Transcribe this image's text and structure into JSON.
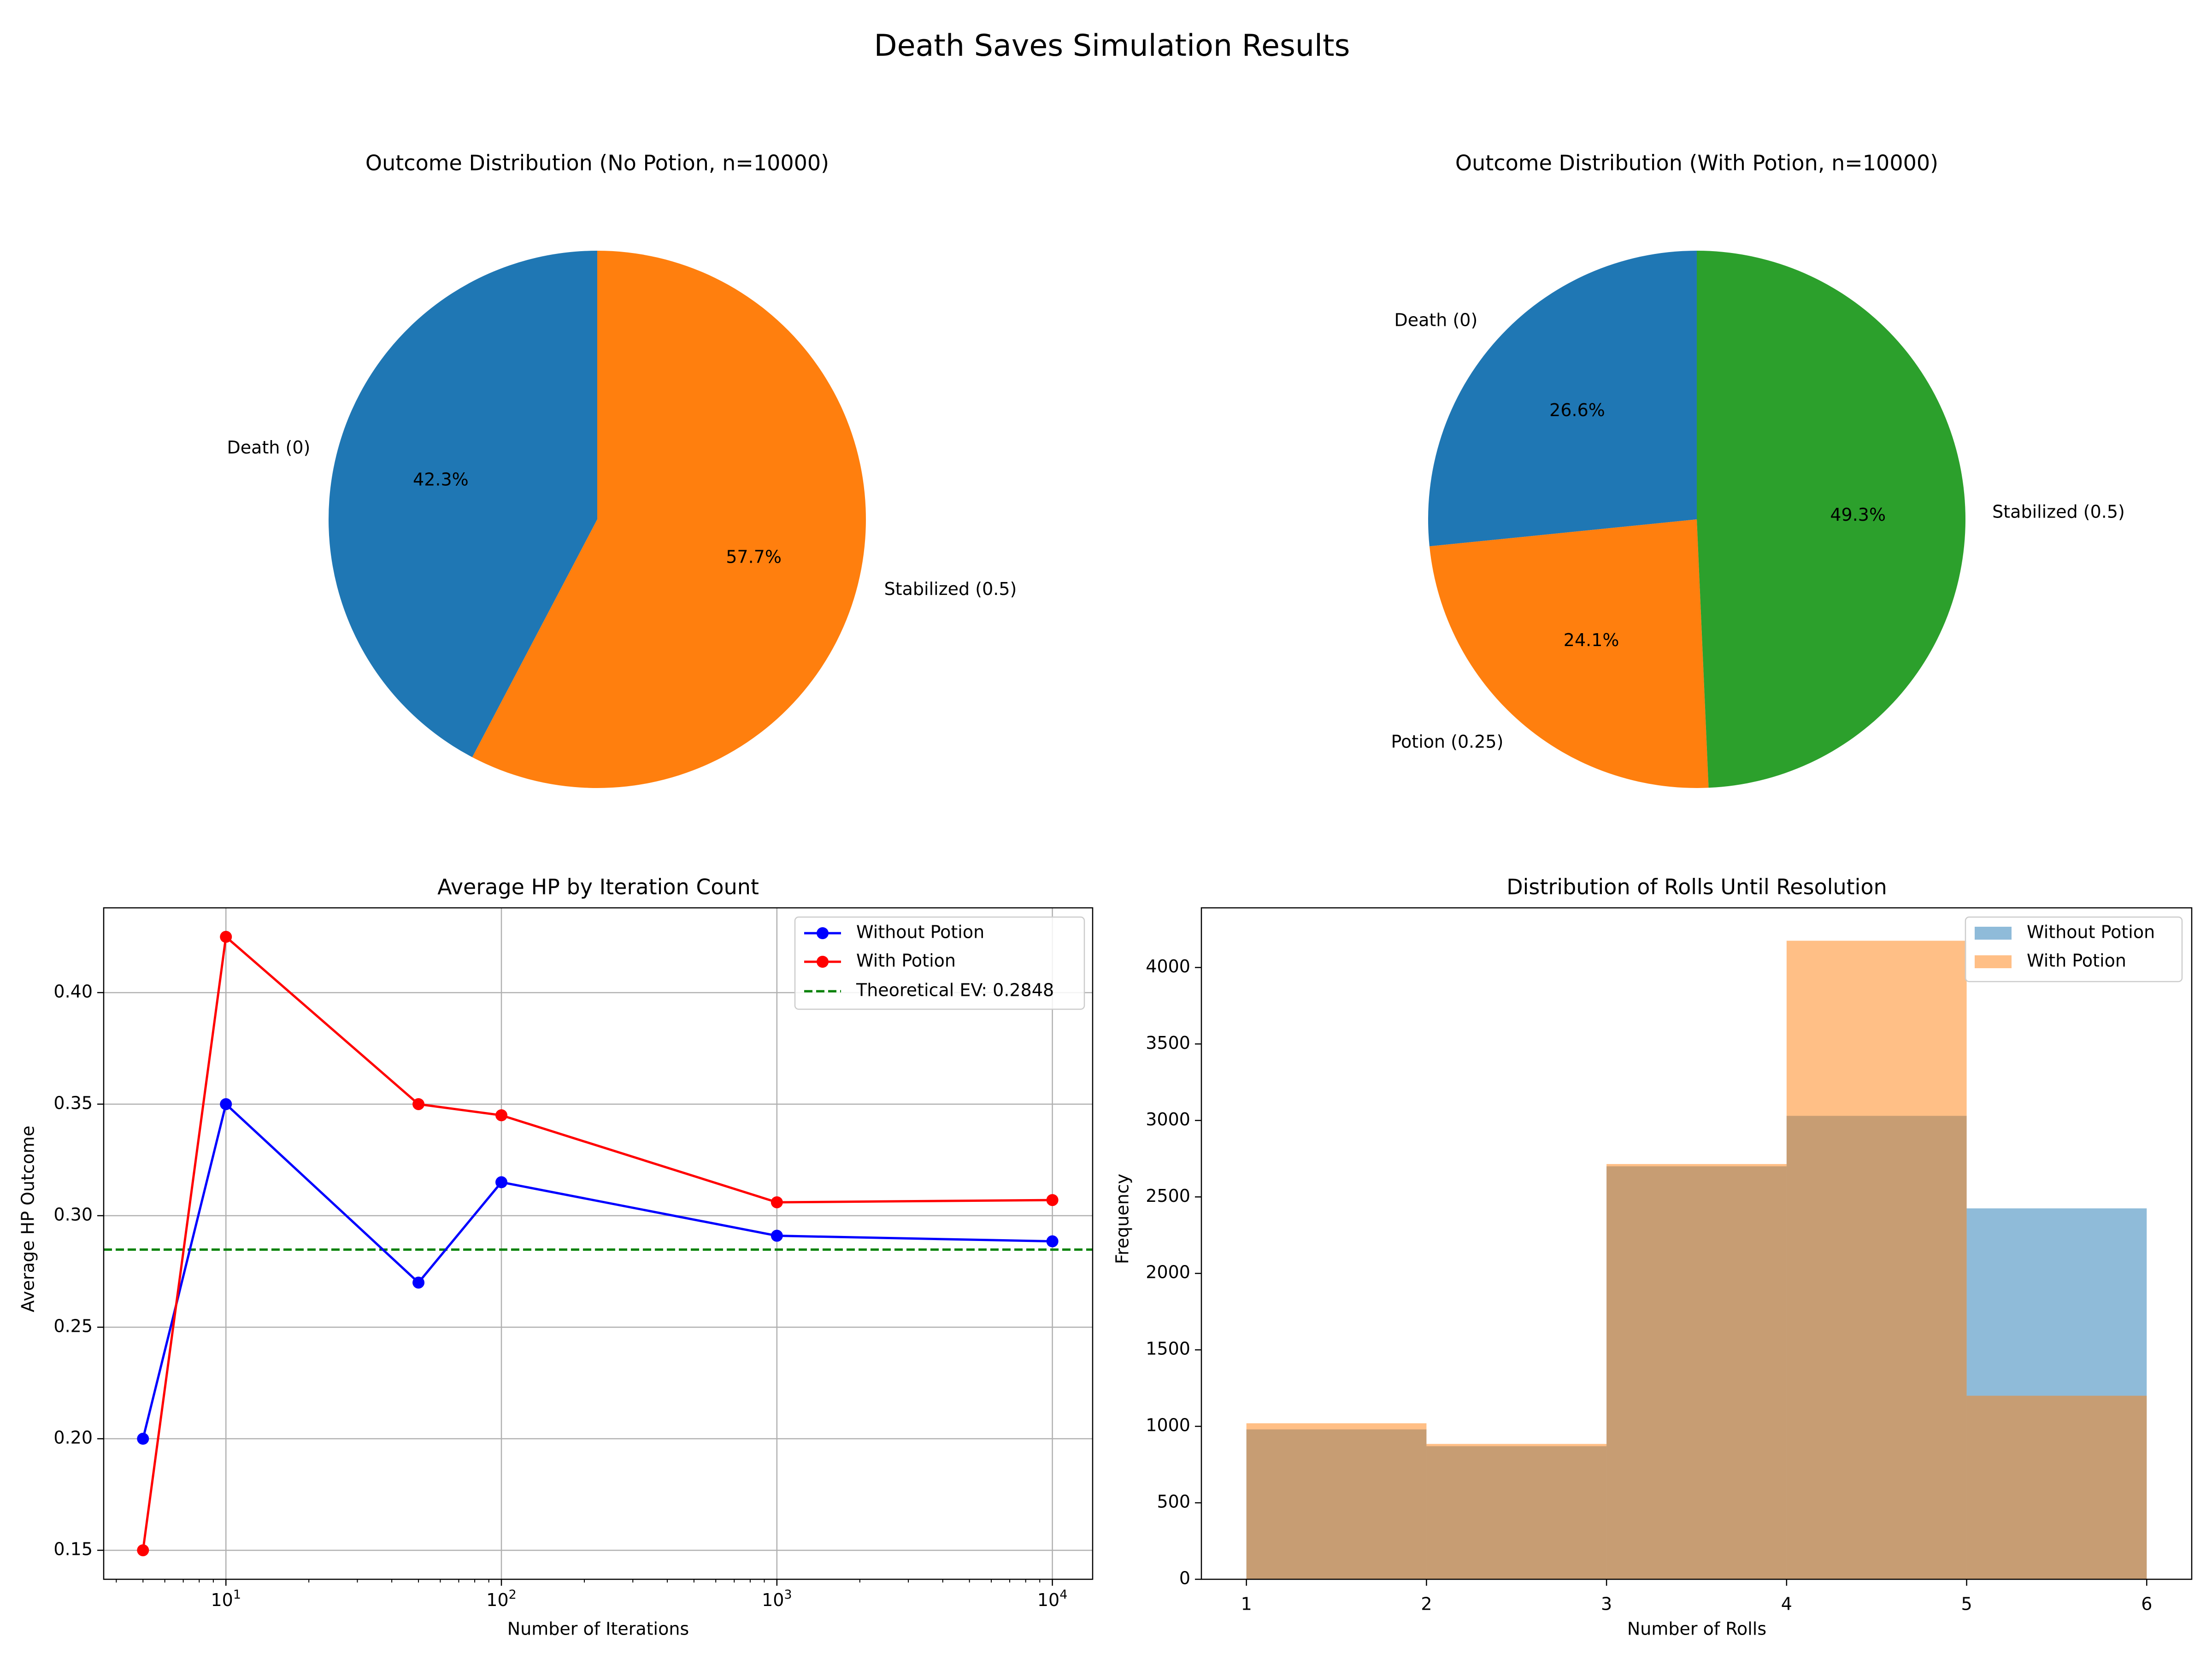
{
  "figure": {
    "title": "Death Saves Simulation Results"
  },
  "chart_data": [
    {
      "type": "pie",
      "title": "Outcome Distribution (No Potion, n=10000)",
      "labels": [
        "Death (0)",
        "Stabilized (0.5)"
      ],
      "values": [
        42.3,
        57.7
      ],
      "pct_labels": [
        "42.3%",
        "57.7%"
      ],
      "colors": [
        "#1f77b4",
        "#ff7f0e"
      ]
    },
    {
      "type": "pie",
      "title": "Outcome Distribution (With Potion, n=10000)",
      "labels": [
        "Death (0)",
        "Potion (0.25)",
        "Stabilized (0.5)"
      ],
      "values": [
        26.6,
        24.1,
        49.3
      ],
      "pct_labels": [
        "26.6%",
        "24.1%",
        "49.3%"
      ],
      "colors": [
        "#1f77b4",
        "#ff7f0e",
        "#2ca02c"
      ]
    },
    {
      "type": "line",
      "title": "Average HP by Iteration Count",
      "xlabel": "Number of Iterations",
      "ylabel": "Average HP Outcome",
      "x_scale": "log",
      "x": [
        5,
        10,
        50,
        100,
        1000,
        10000
      ],
      "xlim": [
        3.6,
        14000
      ],
      "ylim": [
        0.137,
        0.438
      ],
      "x_ticks": [
        {
          "value": 10,
          "base": "10",
          "exp": "1"
        },
        {
          "value": 100,
          "base": "10",
          "exp": "2"
        },
        {
          "value": 1000,
          "base": "10",
          "exp": "3"
        },
        {
          "value": 10000,
          "base": "10",
          "exp": "4"
        }
      ],
      "y_ticks": [
        0.15,
        0.2,
        0.25,
        0.3,
        0.35,
        0.4
      ],
      "y_tick_labels": [
        "0.15",
        "0.20",
        "0.25",
        "0.30",
        "0.35",
        "0.40"
      ],
      "grid": true,
      "legend_position": "upper-right",
      "series": [
        {
          "name": "Without Potion",
          "values": [
            0.2,
            0.35,
            0.27,
            0.315,
            0.291,
            0.2885
          ],
          "color": "#0000ff",
          "marker": "circle"
        },
        {
          "name": "With Potion",
          "values": [
            0.15,
            0.425,
            0.35,
            0.345,
            0.306,
            0.307
          ],
          "color": "#ff0000",
          "marker": "circle"
        }
      ],
      "reference_line": {
        "name": "Theoretical EV: 0.2848",
        "value": 0.2848,
        "color": "#008000",
        "style": "dashed"
      }
    },
    {
      "type": "histogram",
      "title": "Distribution of Rolls Until Resolution",
      "xlabel": "Number of Rolls",
      "ylabel": "Frequency",
      "xlim": [
        0.75,
        6.25
      ],
      "ylim": [
        0,
        4390
      ],
      "x_ticks": [
        1,
        2,
        3,
        4,
        5,
        6
      ],
      "x_tick_labels": [
        "1",
        "2",
        "3",
        "4",
        "5",
        "6"
      ],
      "y_ticks": [
        0,
        500,
        1000,
        1500,
        2000,
        2500,
        3000,
        3500,
        4000
      ],
      "y_tick_labels": [
        "0",
        "500",
        "1000",
        "1500",
        "2000",
        "2500",
        "3000",
        "3500",
        "4000"
      ],
      "bins": [
        1,
        2,
        3,
        4,
        5,
        6
      ],
      "legend_position": "upper-right",
      "series": [
        {
          "name": "Without Potion",
          "counts": [
            980,
            870,
            2700,
            3030,
            2425
          ],
          "color": "#1f77b4",
          "alpha": 0.5
        },
        {
          "name": "With Potion",
          "counts": [
            1020,
            885,
            2715,
            4175,
            1200
          ],
          "color": "#ff7f0e",
          "alpha": 0.5
        }
      ]
    }
  ]
}
